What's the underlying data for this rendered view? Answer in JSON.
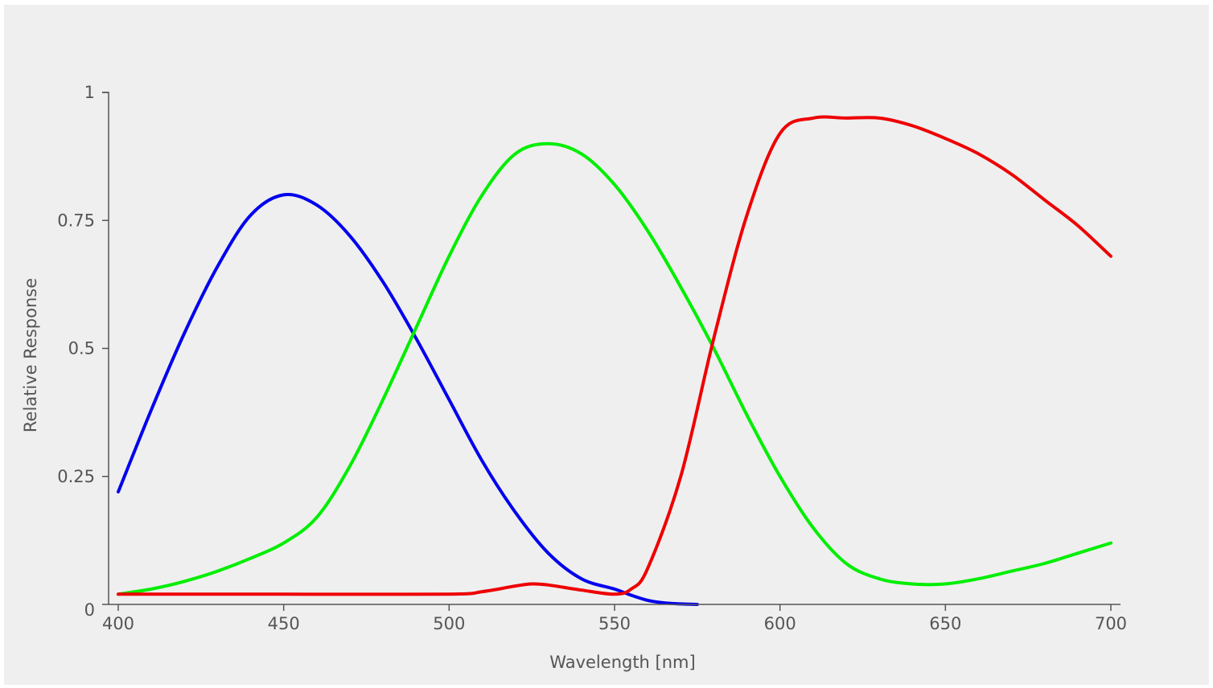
{
  "chart_data": {
    "type": "line",
    "title": "",
    "xlabel": "Wavelength [nm]",
    "ylabel": "Relative Response",
    "xlim": [
      400,
      700
    ],
    "ylim": [
      0,
      1
    ],
    "grid": false,
    "legend": "none",
    "x_ticks": [
      {
        "value": 400,
        "label": "400"
      },
      {
        "value": 450,
        "label": "450"
      },
      {
        "value": 500,
        "label": "500"
      },
      {
        "value": 550,
        "label": "550"
      },
      {
        "value": 600,
        "label": "600"
      },
      {
        "value": 650,
        "label": "650"
      },
      {
        "value": 700,
        "label": "700"
      }
    ],
    "y_ticks": [
      {
        "value": 0,
        "label": "0"
      },
      {
        "value": 0.25,
        "label": "0.25"
      },
      {
        "value": 0.5,
        "label": "0.5"
      },
      {
        "value": 0.75,
        "label": "0.75"
      },
      {
        "value": 1,
        "label": "1"
      }
    ],
    "series": [
      {
        "key": "blue",
        "color": "#0000ee",
        "x": [
          400,
          410,
          420,
          430,
          440,
          450,
          460,
          470,
          480,
          490,
          500,
          510,
          520,
          530,
          540,
          550,
          555,
          560,
          565,
          570,
          575
        ],
        "y": [
          0.22,
          0.38,
          0.53,
          0.66,
          0.76,
          0.8,
          0.78,
          0.72,
          0.63,
          0.52,
          0.4,
          0.28,
          0.18,
          0.1,
          0.05,
          0.03,
          0.018,
          0.008,
          0.003,
          0.001,
          0.0
        ]
      },
      {
        "key": "green",
        "color": "#00ee00",
        "x": [
          400,
          410,
          420,
          430,
          440,
          450,
          460,
          470,
          480,
          490,
          500,
          510,
          520,
          530,
          540,
          550,
          560,
          570,
          580,
          590,
          600,
          610,
          620,
          630,
          640,
          650,
          660,
          670,
          680,
          690,
          700
        ],
        "y": [
          0.02,
          0.03,
          0.045,
          0.065,
          0.09,
          0.12,
          0.17,
          0.27,
          0.4,
          0.54,
          0.68,
          0.8,
          0.88,
          0.9,
          0.88,
          0.82,
          0.73,
          0.62,
          0.5,
          0.37,
          0.25,
          0.15,
          0.08,
          0.05,
          0.04,
          0.04,
          0.05,
          0.065,
          0.08,
          0.1,
          0.12
        ]
      },
      {
        "key": "red",
        "color": "#ee0000",
        "x": [
          400,
          450,
          500,
          510,
          520,
          525,
          530,
          540,
          550,
          555,
          560,
          570,
          580,
          590,
          600,
          610,
          620,
          630,
          640,
          650,
          660,
          670,
          680,
          690,
          700
        ],
        "y": [
          0.02,
          0.02,
          0.02,
          0.025,
          0.036,
          0.04,
          0.038,
          0.028,
          0.02,
          0.03,
          0.07,
          0.25,
          0.52,
          0.76,
          0.92,
          0.95,
          0.95,
          0.95,
          0.935,
          0.91,
          0.88,
          0.84,
          0.79,
          0.74,
          0.68
        ]
      }
    ]
  }
}
